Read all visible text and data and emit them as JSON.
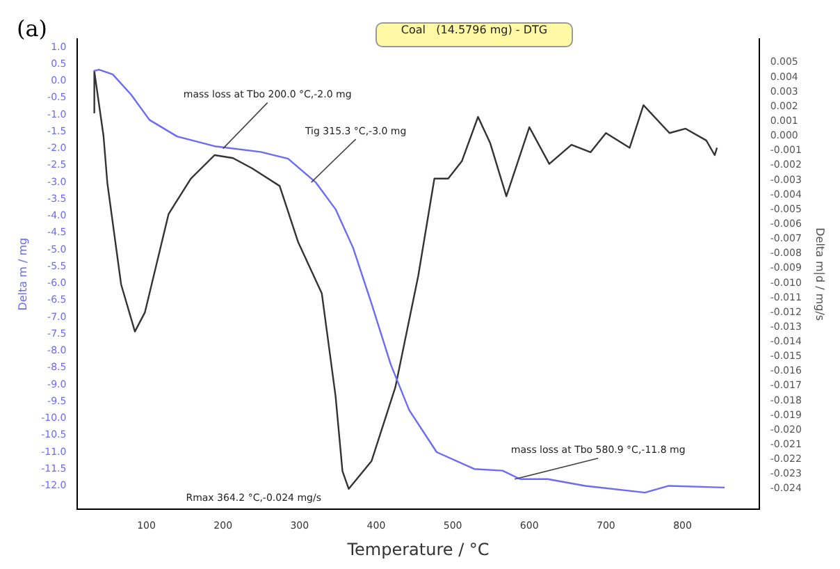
{
  "chart_data": {
    "type": "line",
    "title": "Coal   (14.5796 mg) - DTG",
    "xlabel": "Temperature / °C",
    "ylabel": "Delta m / mg",
    "y2label": "Delta m|d / mg/s",
    "xlim": [
      10,
      900
    ],
    "xticks": [
      100,
      200,
      300,
      400,
      500,
      600,
      700,
      800
    ],
    "ylim": [
      -12.7,
      1.25
    ],
    "yticks": [
      {
        "value": 1,
        "label": "1.0"
      },
      0.5,
      {
        "value": 0,
        "label": "0.0"
      },
      -0.5,
      {
        "value": -1,
        "label": "-1.0"
      },
      -1.5,
      {
        "value": -2,
        "label": "-2.0"
      },
      -2.5,
      {
        "value": -3,
        "label": "-3.0"
      },
      -3.5,
      {
        "value": -4,
        "label": "-4.0"
      },
      -4.5,
      {
        "value": -5,
        "label": "-5.0"
      },
      -5.5,
      {
        "value": -6,
        "label": "-6.0"
      },
      -6.5,
      {
        "value": -7,
        "label": "-7.0"
      },
      -7.5,
      {
        "value": -8,
        "label": "-8.0"
      },
      -8.5,
      {
        "value": -9,
        "label": "-9.0"
      },
      -9.5,
      {
        "value": -10,
        "label": "-10.0"
      },
      -10.5,
      {
        "value": -11,
        "label": "-11.0"
      },
      -11.5,
      {
        "value": -12,
        "label": "-12.0"
      }
    ],
    "y2lim": [
      -0.0254,
      0.0066
    ],
    "y2ticks": [
      0.005,
      0.004,
      0.003,
      0.002,
      0.001,
      {
        "value": 0,
        "label": "0.000"
      },
      -0.001,
      -0.002,
      -0.003,
      -0.004,
      -0.005,
      -0.006,
      -0.007,
      -0.008,
      -0.009,
      {
        "value": -0.01,
        "label": "-0.010"
      },
      -0.011,
      -0.012,
      -0.013,
      -0.014,
      -0.015,
      -0.016,
      -0.017,
      -0.018,
      -0.019,
      {
        "value": -0.02,
        "label": "-0.020"
      },
      -0.021,
      -0.022,
      -0.023,
      -0.024
    ],
    "grid": false,
    "legend": false,
    "marker": "none",
    "line_style": "solid",
    "series": [
      {
        "color": "#6b6bf5",
        "x": [
          31,
          38,
          56,
          80,
          104,
          140,
          189,
          249,
          285,
          321,
          347,
          370,
          394,
          419,
          443,
          479,
          528,
          565,
          588,
          624,
          673,
          751,
          782,
          855
        ],
        "values": [
          0.3,
          0.34,
          0.2,
          -0.4,
          -1.15,
          -1.64,
          -1.93,
          -2.1,
          -2.3,
          -3.0,
          -3.8,
          -4.95,
          -6.6,
          -8.4,
          -9.75,
          -11.0,
          -11.5,
          -11.55,
          -11.8,
          -11.8,
          -12.0,
          -12.2,
          -12.0,
          -12.05
        ]
      },
      {
        "color": "#333333",
        "axis": "y2",
        "x": [
          31,
          32,
          44,
          49,
          67,
          85,
          98,
          129,
          158,
          189,
          213,
          238,
          274,
          298,
          329,
          347,
          356,
          364.2,
          394,
          425,
          455,
          476,
          494,
          512,
          533,
          549,
          570,
          600,
          626,
          655,
          680,
          700,
          731,
          749,
          783,
          804,
          831,
          842,
          845
        ],
        "values": [
          0.0016,
          0.0044,
          0.0,
          -0.0032,
          -0.0101,
          -0.0133,
          -0.012,
          -0.0053,
          -0.0029,
          -0.0013,
          -0.0015,
          -0.0022,
          -0.0034,
          -0.0072,
          -0.0107,
          -0.0177,
          -0.0228,
          -0.024,
          -0.0221,
          -0.0171,
          -0.0095,
          -0.0029,
          -0.0029,
          -0.0017,
          0.0013,
          -0.0005,
          -0.0041,
          0.0006,
          -0.0019,
          -0.0006,
          -0.0011,
          0.0002,
          -0.0008,
          0.0021,
          0.0002,
          0.0005,
          -0.0003,
          -0.0013,
          -0.0008
        ]
      }
    ],
    "annotations": [
      "(a)",
      {
        "text": "mass loss at Tbo 200.0 °C,-2.0 mg",
        "x": 200,
        "y": -2.0
      },
      {
        "text": "Tig 315.3 °C,-3.0 mg",
        "x": 315.3,
        "y": -3.0
      },
      "Rmax 364.2 °C,-0.024 mg/s",
      {
        "text": "mass loss at Tbo 580.9 °C,-11.8 mg",
        "x": 580.9,
        "y": -11.8
      }
    ]
  }
}
